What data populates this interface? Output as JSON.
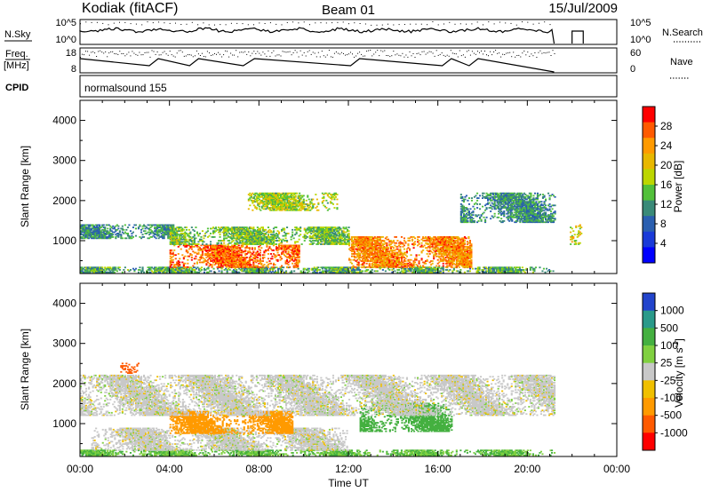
{
  "header": {
    "station": "Kodiak (fitACF)",
    "beam": "Beam 01",
    "date": "15/Jul/2009"
  },
  "panels": {
    "nsky": {
      "left_label": "N.Sky",
      "right_label": "N.Search",
      "ticks_left": [
        "10^5",
        "10^0"
      ],
      "ticks_right": [
        "10^5",
        "10^0"
      ]
    },
    "freq": {
      "left_label_1": "Freq.",
      "left_label_2": "[MHz]",
      "right_label": "Nave",
      "ticks_left": [
        "18",
        "8"
      ],
      "ticks_right": [
        "60",
        "0"
      ]
    },
    "cpid": {
      "label": "CPID",
      "program": "normalsound 155"
    }
  },
  "colorbars": {
    "power": {
      "title": "Power [dB]",
      "labels": [
        "28",
        "24",
        "20",
        "16",
        "12",
        "8",
        "4"
      ],
      "colors": [
        "#ff0000",
        "#ff5a00",
        "#ff9a00",
        "#e8b800",
        "#bcd600",
        "#52c03a",
        "#3a8a78",
        "#2a5fb0",
        "#1a3ad8",
        "#0000ff"
      ]
    },
    "velocity": {
      "title": "Velocity [m s",
      "title_sup": "-1",
      "title_end": "]",
      "labels": [
        "1000",
        "500",
        "100",
        "25",
        "-25",
        "-100",
        "-500",
        "-1000"
      ],
      "colors": [
        "#2244cc",
        "#2a9a8a",
        "#44b040",
        "#80d040",
        "#c8c8c8",
        "#f0c000",
        "#ff9a00",
        "#ff5a00",
        "#ff0000"
      ]
    }
  },
  "chart_data": [
    {
      "type": "heatmap",
      "title": "",
      "xlabel": "",
      "ylabel": "Slant Range [km]",
      "xlim": [
        0,
        24
      ],
      "ylim": [
        180,
        4500
      ],
      "x_ticks": [
        "00:00",
        "04:00",
        "08:00",
        "12:00",
        "16:00",
        "20:00",
        "00:00"
      ],
      "y_ticks": [
        "1000",
        "2000",
        "3000",
        "4000"
      ],
      "colorbar": "Power [dB]",
      "regions": [
        {
          "name": "near-range band",
          "t": [
            0.0,
            21.2
          ],
          "r": [
            200,
            330
          ],
          "value_db": 12
        },
        {
          "name": "E-layer echoes",
          "t": [
            4.0,
            9.8
          ],
          "r": [
            330,
            900
          ],
          "value_db": 26
        },
        {
          "name": "afternoon arc",
          "t": [
            12.0,
            17.5
          ],
          "r": [
            330,
            1100
          ],
          "value_db": 24
        },
        {
          "name": "early F-region",
          "t": [
            0.0,
            4.2
          ],
          "r": [
            1050,
            1400
          ],
          "value_db": 10
        },
        {
          "name": "F-region band",
          "t": [
            4.0,
            12.0
          ],
          "r": [
            900,
            1350
          ],
          "value_db": 14
        },
        {
          "name": "cusp band",
          "t": [
            7.5,
            11.5
          ],
          "r": [
            1750,
            2200
          ],
          "value_db": 16
        },
        {
          "name": "evening band",
          "t": [
            17.0,
            21.2
          ],
          "r": [
            1450,
            2200
          ],
          "value_db": 10
        },
        {
          "name": "late echoes",
          "t": [
            21.9,
            22.4
          ],
          "r": [
            900,
            1400
          ],
          "value_db": 18
        }
      ]
    },
    {
      "type": "heatmap",
      "title": "",
      "xlabel": "Time UT",
      "ylabel": "Slant Range [km]",
      "xlim": [
        0,
        24
      ],
      "ylim": [
        180,
        4500
      ],
      "x_ticks": [
        "00:00",
        "04:00",
        "08:00",
        "12:00",
        "16:00",
        "20:00",
        "00:00"
      ],
      "y_ticks": [
        "1000",
        "2000",
        "3000",
        "4000"
      ],
      "colorbar": "Velocity [m s-1]",
      "regions": [
        {
          "name": "near-range band",
          "t": [
            0.0,
            21.2
          ],
          "r": [
            200,
            330
          ],
          "value_ms": 60
        },
        {
          "name": "ground scatter",
          "t": [
            0.5,
            12.0
          ],
          "r": [
            330,
            900
          ],
          "value_ms": 0
        },
        {
          "name": "westward flow",
          "t": [
            4.0,
            9.5
          ],
          "r": [
            750,
            1300
          ],
          "value_ms": -200
        },
        {
          "name": "eastward flow",
          "t": [
            12.5,
            16.6
          ],
          "r": [
            800,
            1500
          ],
          "value_ms": 150
        },
        {
          "name": "F-region ground scatter",
          "t": [
            0.0,
            21.2
          ],
          "r": [
            1200,
            2200
          ],
          "value_ms": 0
        },
        {
          "name": "cusp flow",
          "t": [
            1.8,
            2.6
          ],
          "r": [
            2250,
            2500
          ],
          "value_ms": -800
        }
      ]
    }
  ]
}
